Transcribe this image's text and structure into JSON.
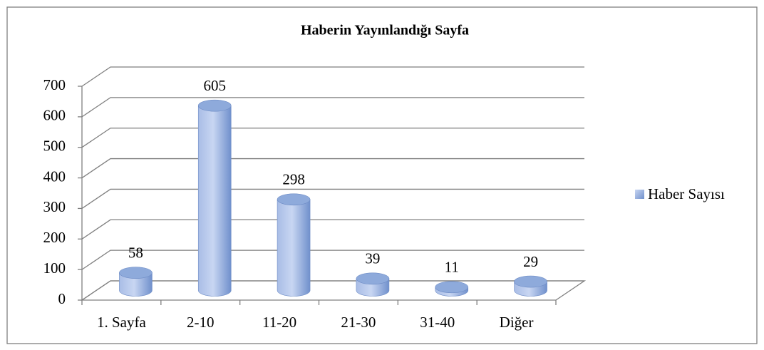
{
  "chart_data": {
    "type": "bar3d",
    "title": "Haberin Yayınlandığı Sayfa",
    "categories": [
      "1. Sayfa",
      "2-10",
      "11-20",
      "21-30",
      "31-40",
      "Diğer"
    ],
    "series": [
      {
        "name": "Haber Sayısı",
        "color": "#8eaadb",
        "values": [
          58,
          605,
          298,
          39,
          11,
          29
        ]
      }
    ],
    "ylim": [
      0,
      700
    ],
    "yticks": [
      0,
      100,
      200,
      300,
      400,
      500,
      600,
      700
    ],
    "grid": true,
    "legend": "right"
  }
}
